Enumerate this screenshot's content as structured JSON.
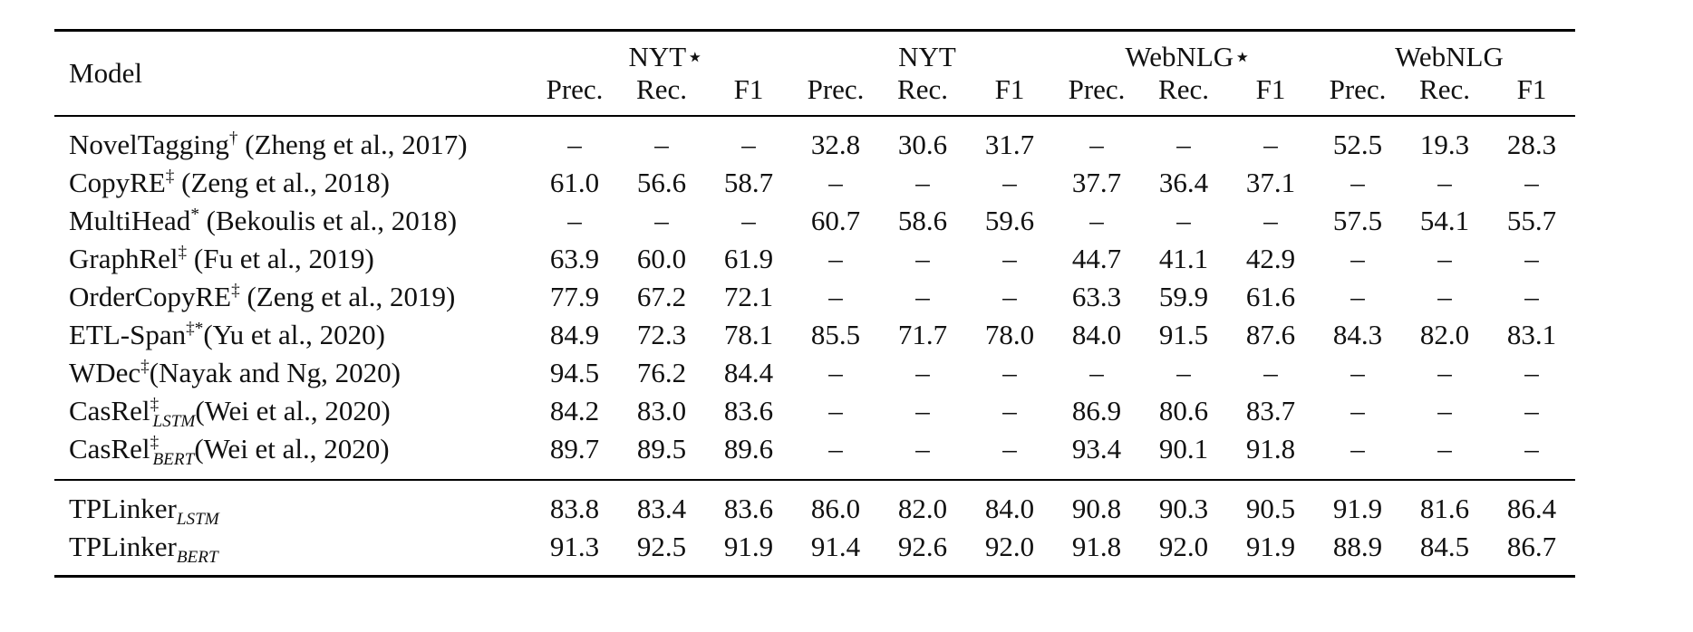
{
  "table": {
    "model_header": "Model",
    "groups": [
      "NYT⋆",
      "NYT",
      "WebNLG⋆",
      "WebNLG"
    ],
    "metrics": [
      "Prec.",
      "Rec.",
      "F1"
    ],
    "baseline_rows": [
      {
        "name": "NovelTagging",
        "mark": "†",
        "sub": "",
        "cite": " (Zheng et al., 2017)",
        "values": [
          "–",
          "–",
          "–",
          "32.8",
          "30.6",
          "31.7",
          "–",
          "–",
          "–",
          "52.5",
          "19.3",
          "28.3"
        ],
        "bold": []
      },
      {
        "name": "CopyRE",
        "mark": "‡",
        "sub": "",
        "cite": " (Zeng et al., 2018)",
        "values": [
          "61.0",
          "56.6",
          "58.7",
          "–",
          "–",
          "–",
          "37.7",
          "36.4",
          "37.1",
          "–",
          "–",
          "–"
        ],
        "bold": []
      },
      {
        "name": "MultiHead",
        "mark": "*",
        "sub": "",
        "cite": " (Bekoulis et al., 2018)",
        "values": [
          "–",
          "–",
          "–",
          "60.7",
          "58.6",
          "59.6",
          "–",
          "–",
          "–",
          "57.5",
          "54.1",
          "55.7"
        ],
        "bold": []
      },
      {
        "name": "GraphRel",
        "mark": "‡",
        "sub": "",
        "cite": " (Fu et al., 2019)",
        "values": [
          "63.9",
          "60.0",
          "61.9",
          "–",
          "–",
          "–",
          "44.7",
          "41.1",
          "42.9",
          "–",
          "–",
          "–"
        ],
        "bold": []
      },
      {
        "name": "OrderCopyRE",
        "mark": "‡",
        "sub": "",
        "cite": " (Zeng et al., 2019)",
        "values": [
          "77.9",
          "67.2",
          "72.1",
          "–",
          "–",
          "–",
          "63.3",
          "59.9",
          "61.6",
          "–",
          "–",
          "–"
        ],
        "bold": []
      },
      {
        "name": "ETL-Span",
        "mark": "‡*",
        "sub": "",
        "cite": "(Yu et al., 2020)",
        "values": [
          "84.9",
          "72.3",
          "78.1",
          "85.5",
          "71.7",
          "78.0",
          "84.0",
          "91.5",
          "87.6",
          "84.3",
          "82.0",
          "83.1"
        ],
        "bold": []
      },
      {
        "name": "WDec",
        "mark": "‡",
        "sub": "",
        "cite": "(Nayak and Ng, 2020)",
        "values": [
          "94.5",
          "76.2",
          "84.4",
          "–",
          "–",
          "–",
          "–",
          "–",
          "–",
          "–",
          "–",
          "–"
        ],
        "bold": [
          0
        ]
      },
      {
        "name": "CasRel",
        "mark": "‡",
        "sub": "LSTM",
        "cite": "(Wei et al., 2020)",
        "values": [
          "84.2",
          "83.0",
          "83.6",
          "–",
          "–",
          "–",
          "86.9",
          "80.6",
          "83.7",
          "–",
          "–",
          "–"
        ],
        "bold": []
      },
      {
        "name": "CasRel",
        "mark": "‡",
        "sub": "BERT",
        "cite": "(Wei et al., 2020)",
        "values": [
          "89.7",
          "89.5",
          "89.6",
          "–",
          "–",
          "–",
          "93.4",
          "90.1",
          "91.8",
          "–",
          "–",
          "–"
        ],
        "bold": [
          6
        ]
      }
    ],
    "our_rows": [
      {
        "name": "TPLinker",
        "mark": "",
        "sub": "LSTM",
        "cite": "",
        "values": [
          "83.8",
          "83.4",
          "83.6",
          "86.0",
          "82.0",
          "84.0",
          "90.8",
          "90.3",
          "90.5",
          "91.9",
          "81.6",
          "86.4"
        ],
        "bold": [
          9
        ]
      },
      {
        "name": "TPLinker",
        "mark": "",
        "sub": "BERT",
        "cite": "",
        "values": [
          "91.3",
          "92.5",
          "91.9",
          "91.4",
          "92.6",
          "92.0",
          "91.8",
          "92.0",
          "91.9",
          "88.9",
          "84.5",
          "86.7"
        ],
        "bold": [
          1,
          2,
          3,
          4,
          5,
          7,
          8,
          10,
          11
        ]
      }
    ]
  }
}
